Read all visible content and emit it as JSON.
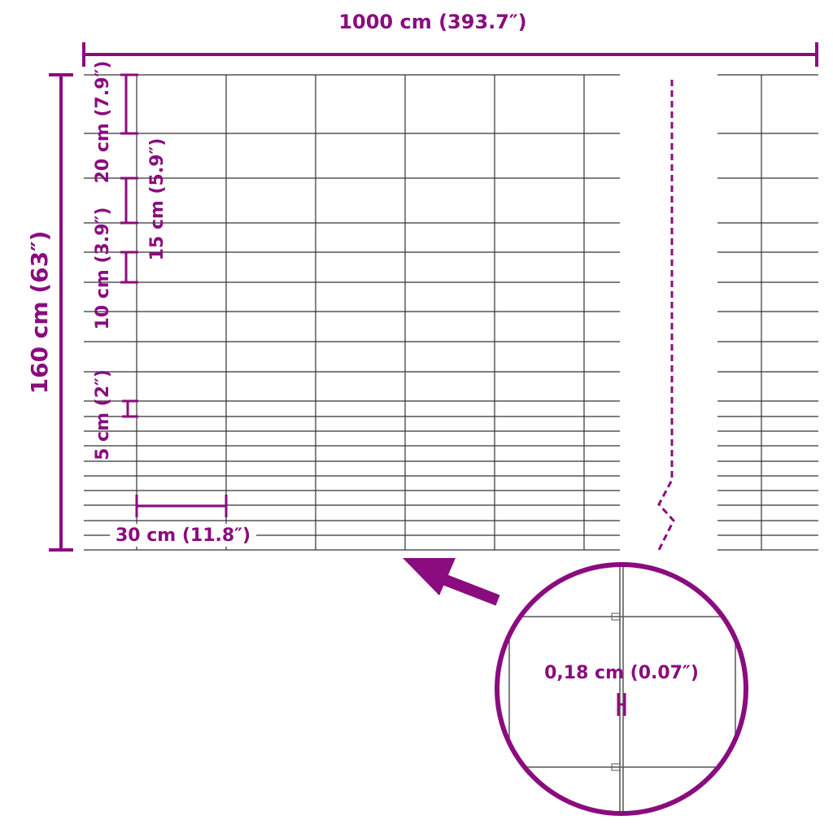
{
  "colors": {
    "accent": "#8a0c7e",
    "wire": "#333333"
  },
  "dimensions": {
    "width": "1000 cm (393.7″)",
    "height": "160 cm (63″)",
    "spacing_20": "20 cm (7.9″)",
    "spacing_15": "15 cm (5.9″)",
    "spacing_10": "10 cm (3.9″)",
    "spacing_5": "5 cm (2″)",
    "post_spacing": "30 cm (11.8″)",
    "wire_diameter": "0,18 cm (0.07″)"
  },
  "icons": [
    "arrow-icon",
    "magnifier-circle"
  ]
}
